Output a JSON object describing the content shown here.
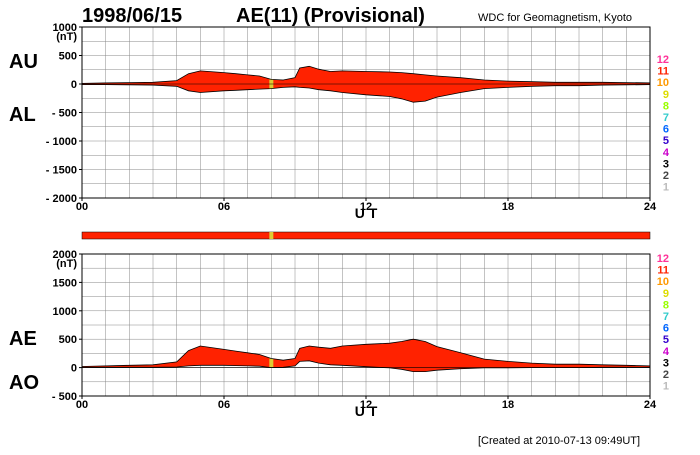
{
  "header": {
    "date": "1998/06/15",
    "title": "AE(11) (Provisional)",
    "source": "WDC for Geomagnetism, Kyoto"
  },
  "footer": {
    "created": "[Created at 2010-07-13 09:49UT]"
  },
  "scale_legend": {
    "labels": [
      "12",
      "11",
      "10",
      "9",
      "8",
      "7",
      "6",
      "5",
      "4",
      "3",
      "2",
      "1"
    ],
    "colors": [
      "#ff3399",
      "#ff2200",
      "#ff9900",
      "#dddd00",
      "#99ff00",
      "#33cccc",
      "#0066ff",
      "#3300cc",
      "#cc00cc",
      "#000000",
      "#444444",
      "#bbbbbb"
    ]
  },
  "colors": {
    "fill": "#ff2200",
    "highlight": "#ddcc33",
    "outline": "#000000",
    "grid": "#888888"
  },
  "chart_data": [
    {
      "type": "area",
      "name": "AU/AL panel",
      "left_labels": [
        "AU",
        "AL"
      ],
      "unit": "(nT)",
      "xlabel": "U T",
      "xticks": [
        0,
        6,
        12,
        18,
        24
      ],
      "xtick_labels": [
        "00",
        "06",
        "12",
        "18",
        "24"
      ],
      "xlim": [
        0,
        24
      ],
      "ylim": [
        -2000,
        1000
      ],
      "yticks": [
        1000,
        500,
        0,
        -500,
        -1000,
        -1500,
        -2000
      ],
      "ytick_labels": [
        "1000",
        "500",
        "0",
        "- 500",
        "- 1000",
        "- 1500",
        "- 2000"
      ],
      "highlight_x": 8.0,
      "x": [
        0,
        1,
        2,
        3,
        4,
        4.5,
        5,
        6,
        6.5,
        7,
        7.5,
        8,
        8.5,
        9,
        9.2,
        9.6,
        10,
        10.5,
        11,
        12,
        13,
        13.5,
        14,
        14.5,
        15,
        16,
        17,
        18,
        19,
        20,
        21,
        22,
        23,
        24
      ],
      "series": [
        {
          "name": "AU",
          "values": [
            10,
            20,
            25,
            30,
            60,
            180,
            230,
            200,
            180,
            160,
            140,
            80,
            70,
            110,
            280,
            310,
            260,
            220,
            230,
            220,
            210,
            200,
            180,
            160,
            140,
            110,
            70,
            50,
            40,
            30,
            30,
            30,
            25,
            20
          ]
        },
        {
          "name": "AL",
          "values": [
            -10,
            -10,
            -15,
            -20,
            -40,
            -120,
            -150,
            -120,
            -110,
            -100,
            -90,
            -80,
            -60,
            -50,
            -60,
            -70,
            -100,
            -120,
            -150,
            -190,
            -220,
            -260,
            -320,
            -300,
            -230,
            -150,
            -80,
            -60,
            -40,
            -30,
            -30,
            -20,
            -15,
            -10
          ]
        }
      ]
    },
    {
      "type": "area",
      "name": "AE/AO panel",
      "left_labels": [
        "AE",
        "AO"
      ],
      "unit": "(nT)",
      "xlabel": "U T",
      "xticks": [
        0,
        6,
        12,
        18,
        24
      ],
      "xtick_labels": [
        "00",
        "06",
        "12",
        "18",
        "24"
      ],
      "xlim": [
        0,
        24
      ],
      "ylim": [
        -500,
        2000
      ],
      "yticks": [
        2000,
        1500,
        1000,
        500,
        0,
        -500
      ],
      "ytick_labels": [
        "2000",
        "1500",
        "1000",
        "500",
        "0",
        "- 500"
      ],
      "highlight_x": 8.0,
      "x": [
        0,
        1,
        2,
        3,
        4,
        4.5,
        5,
        6,
        6.5,
        7,
        7.5,
        8,
        8.5,
        9,
        9.2,
        9.6,
        10,
        10.5,
        11,
        12,
        13,
        13.5,
        14,
        14.5,
        15,
        16,
        17,
        18,
        19,
        20,
        21,
        22,
        23,
        24
      ],
      "series": [
        {
          "name": "AE",
          "values": [
            20,
            30,
            40,
            50,
            100,
            300,
            380,
            320,
            290,
            260,
            230,
            160,
            130,
            160,
            340,
            380,
            360,
            340,
            380,
            410,
            430,
            460,
            500,
            460,
            370,
            260,
            150,
            110,
            80,
            60,
            60,
            50,
            40,
            30
          ]
        },
        {
          "name": "AO",
          "values": [
            0,
            5,
            5,
            5,
            10,
            30,
            40,
            40,
            35,
            30,
            25,
            0,
            5,
            30,
            110,
            120,
            80,
            50,
            40,
            15,
            -5,
            -30,
            -70,
            -70,
            -45,
            -20,
            -5,
            -5,
            0,
            0,
            0,
            5,
            5,
            5
          ]
        }
      ]
    }
  ]
}
